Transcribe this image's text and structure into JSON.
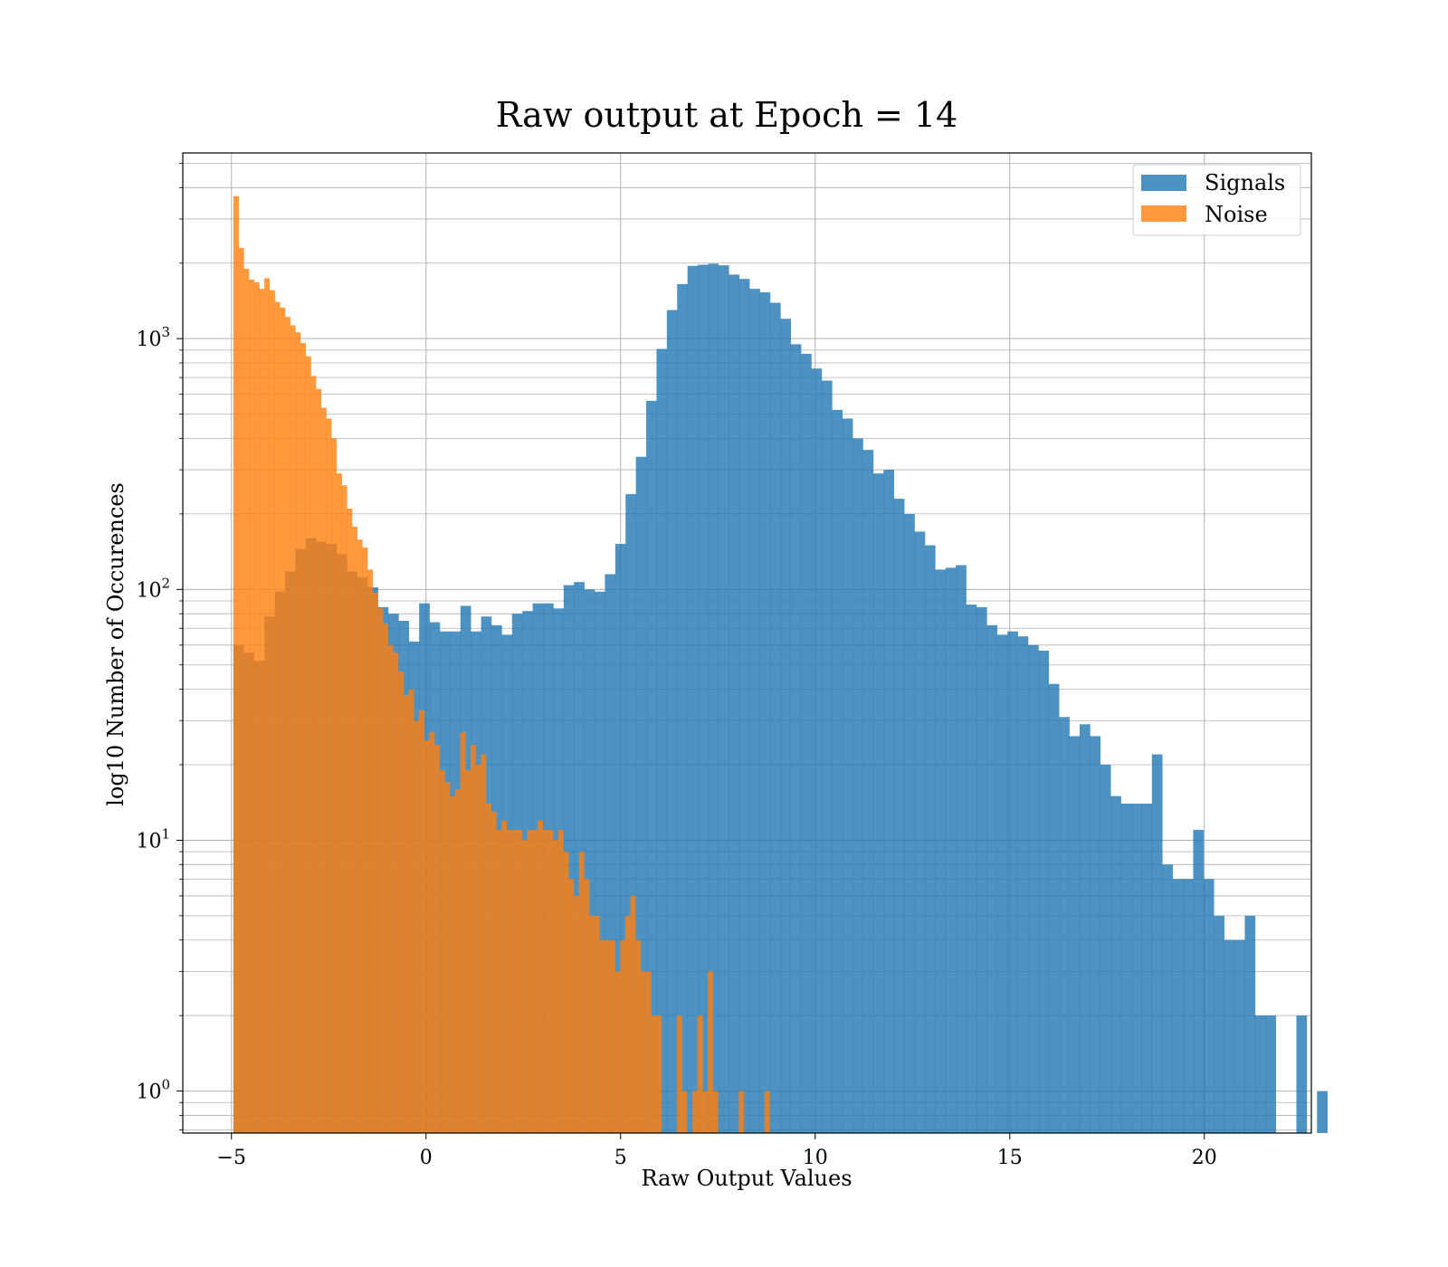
{
  "chart_data": {
    "type": "bar",
    "title": "Raw output at Epoch = 14",
    "xlabel": "Raw Output Values",
    "ylabel": "log10 Number of Occurences",
    "xlim": [
      -6.25,
      22.75
    ],
    "ylim": [
      0.68,
      5500
    ],
    "yscale": "log",
    "grid": true,
    "legend_position": "top-right",
    "x_ticks": [
      {
        "value": -5,
        "label": "−5"
      },
      {
        "value": 0,
        "label": "0"
      },
      {
        "value": 5,
        "label": "5"
      },
      {
        "value": 10,
        "label": "10"
      },
      {
        "value": 15,
        "label": "15"
      },
      {
        "value": 20,
        "label": "20"
      }
    ],
    "y_ticks": [
      {
        "value": 1,
        "base": "10",
        "exp": "0"
      },
      {
        "value": 10,
        "base": "10",
        "exp": "1"
      },
      {
        "value": 100,
        "base": "10",
        "exp": "2"
      },
      {
        "value": 1000,
        "base": "10",
        "exp": "3"
      }
    ],
    "series": [
      {
        "name": "Signals",
        "color": "#1f77b4",
        "alpha": 0.8,
        "bin_start": -4.95,
        "bin_width": 0.2652,
        "values": [
          60,
          56,
          52,
          78,
          98,
          118,
          145,
          160,
          155,
          152,
          138,
          118,
          112,
          102,
          85,
          80,
          75,
          62,
          88,
          74,
          68,
          68,
          86,
          68,
          78,
          72,
          66,
          80,
          82,
          88,
          88,
          84,
          104,
          107,
          100,
          98,
          115,
          152,
          240,
          338,
          565,
          910,
          1300,
          1650,
          1950,
          1970,
          1990,
          1960,
          1800,
          1730,
          1580,
          1530,
          1390,
          1200,
          950,
          870,
          760,
          680,
          520,
          480,
          400,
          360,
          290,
          300,
          230,
          200,
          170,
          150,
          120,
          122,
          125,
          87,
          85,
          72,
          66,
          68,
          65,
          60,
          57,
          42,
          31,
          26,
          29,
          26,
          20,
          15,
          14,
          14,
          14,
          22,
          8,
          7,
          7,
          11,
          7,
          5,
          4,
          4,
          5,
          2,
          2,
          0,
          0,
          2,
          0,
          1
        ]
      },
      {
        "name": "Noise",
        "color": "#ff7f0e",
        "alpha": 0.8,
        "bin_start": -4.95,
        "bin_width": 0.1325,
        "values": [
          3700,
          2300,
          1900,
          1720,
          1680,
          1580,
          1740,
          1560,
          1400,
          1330,
          1220,
          1130,
          1060,
          960,
          850,
          710,
          630,
          530,
          480,
          400,
          290,
          260,
          210,
          178,
          158,
          147,
          120,
          97,
          84,
          73,
          60,
          56,
          47,
          38,
          40,
          30,
          33,
          25,
          27,
          24,
          19,
          17,
          15,
          16,
          27,
          19,
          24,
          20,
          22,
          14,
          13,
          11,
          12,
          11,
          11,
          11,
          10,
          11,
          11,
          12,
          11,
          11,
          10,
          11,
          9,
          7,
          6,
          9,
          7,
          5,
          5,
          4,
          4,
          4,
          3,
          4,
          5,
          6,
          4,
          3,
          3,
          2,
          2,
          0,
          0,
          0,
          2,
          1,
          0,
          1,
          2,
          1,
          3,
          1,
          0,
          0,
          0,
          0,
          1,
          0,
          0,
          0,
          0,
          1,
          0
        ]
      }
    ]
  }
}
